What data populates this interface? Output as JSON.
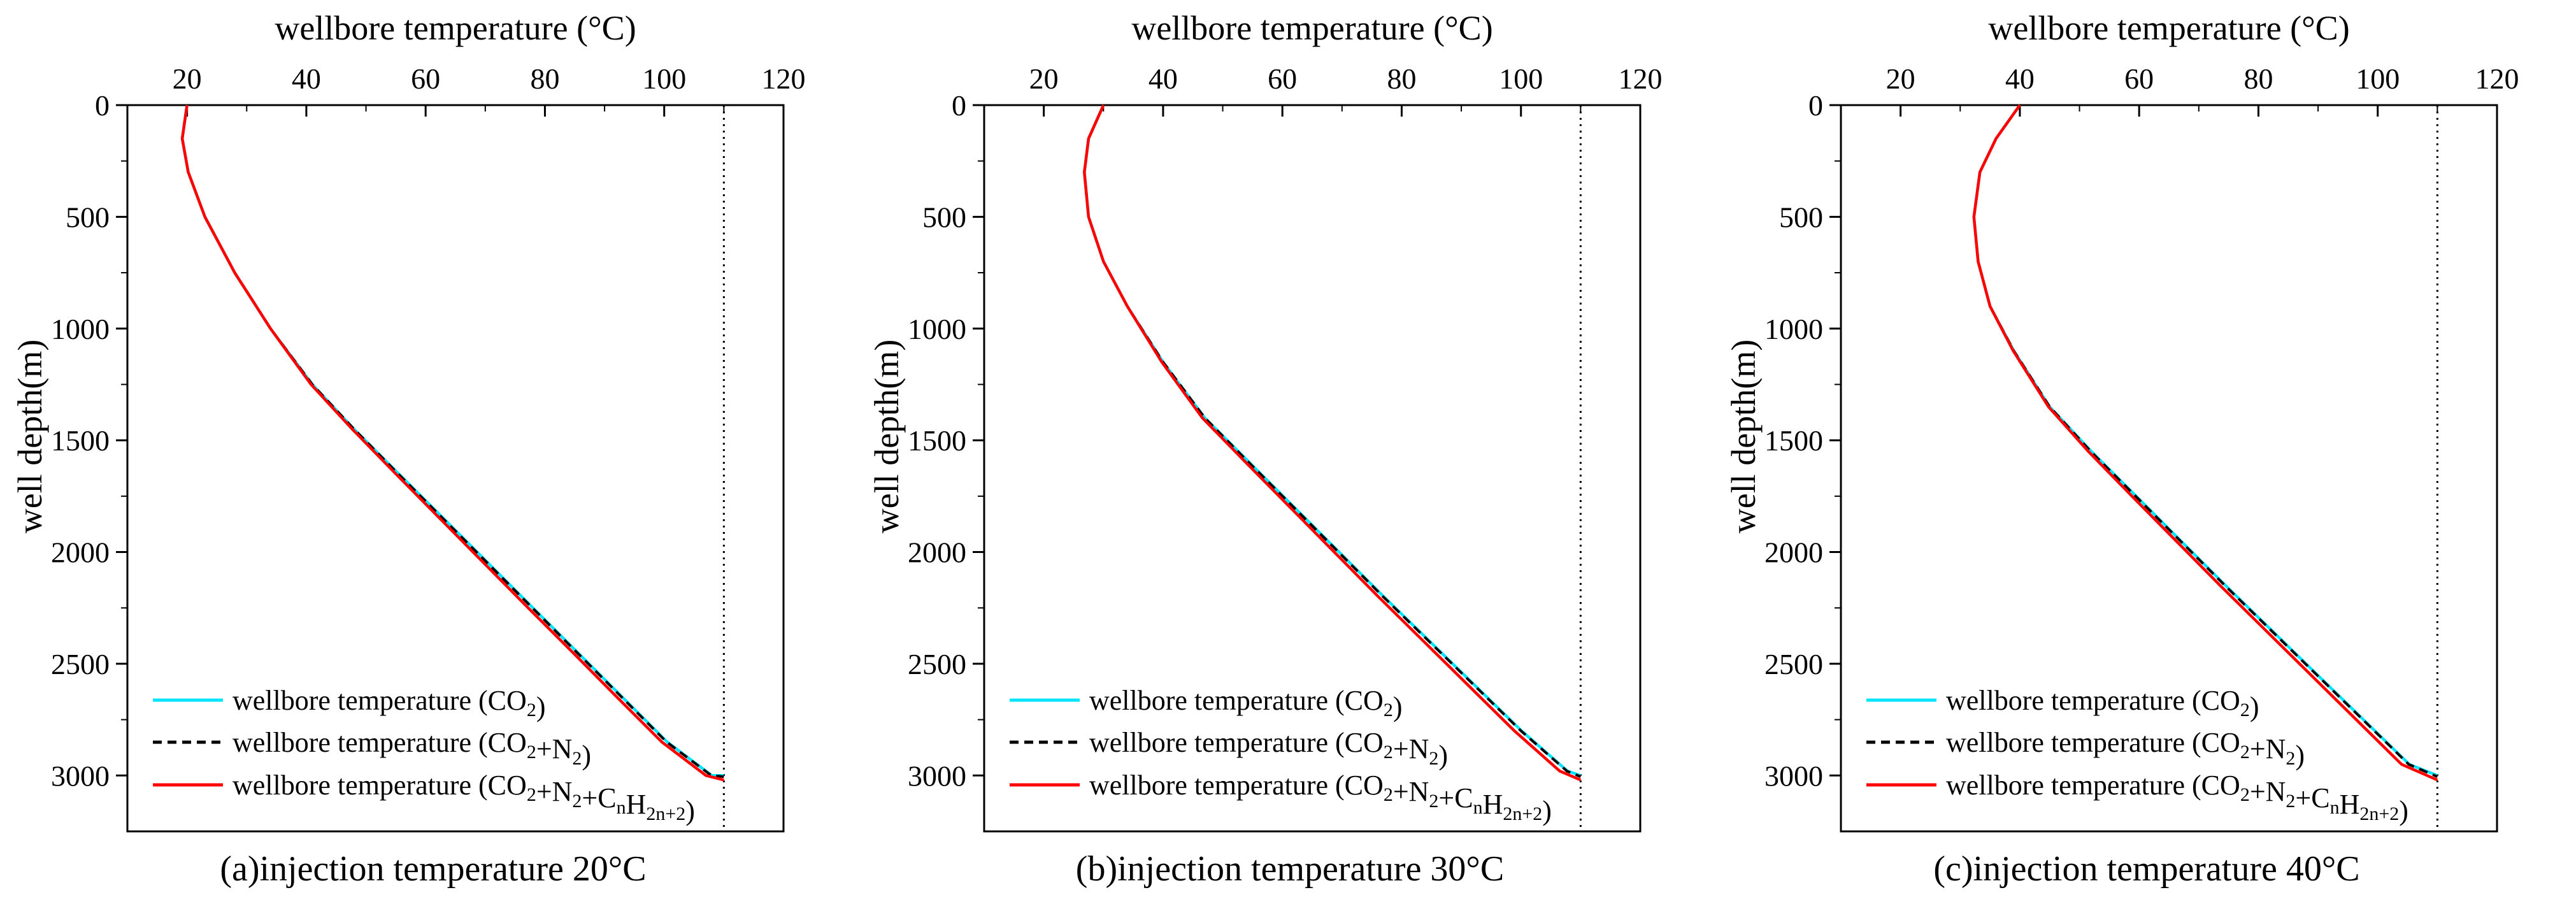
{
  "chart_data": [
    {
      "type": "line",
      "panel_label": "(a)",
      "caption": "(a)injection temperature 20°C",
      "xlabel": "wellbore temperature (°C)",
      "ylabel": "well depth(m)",
      "xlim": [
        10,
        120
      ],
      "ylim": [
        3250,
        0
      ],
      "xticks": [
        20,
        40,
        60,
        80,
        100,
        120
      ],
      "yticks": [
        0,
        500,
        1000,
        1500,
        2000,
        2500,
        3000
      ],
      "reference_line": {
        "x": 110,
        "style": "dotted"
      },
      "legend_location": "lower-left",
      "series": [
        {
          "name": "wellbore temperature (CO2)",
          "legend_parts": [
            [
              "wellbore temperature (CO",
              "n"
            ],
            [
              "2",
              "s"
            ],
            [
              ")",
              "n"
            ]
          ],
          "color": "#00e5ff",
          "style": "solid",
          "x": [
            20,
            19.2,
            20.2,
            23,
            28,
            34,
            41,
            48,
            55.5,
            63,
            70.5,
            78,
            85.5,
            93,
            100.5,
            108,
            110
          ],
          "y": [
            0,
            150,
            300,
            500,
            750,
            1000,
            1250,
            1450,
            1650,
            1850,
            2050,
            2250,
            2450,
            2650,
            2850,
            3000,
            3000
          ]
        },
        {
          "name": "wellbore temperature (CO2+N2)",
          "legend_parts": [
            [
              "wellbore temperature (CO",
              "n"
            ],
            [
              "2",
              "s"
            ],
            [
              "+N",
              "n"
            ],
            [
              "2",
              "s"
            ],
            [
              ")",
              "n"
            ]
          ],
          "color": "#000000",
          "style": "dashed",
          "x": [
            20,
            19.2,
            20.2,
            23,
            28,
            34,
            41,
            48,
            55.4,
            62.9,
            70.4,
            77.9,
            85.4,
            92.9,
            100.4,
            107.9,
            110
          ],
          "y": [
            0,
            150,
            300,
            500,
            750,
            1000,
            1250,
            1450,
            1650,
            1850,
            2050,
            2250,
            2450,
            2650,
            2850,
            3000,
            3005
          ]
        },
        {
          "name": "wellbore temperature (CO2+N2+CnH2n+2)",
          "legend_parts": [
            [
              "wellbore temperature (CO",
              "n"
            ],
            [
              "2",
              "s"
            ],
            [
              "+N",
              "n"
            ],
            [
              "2",
              "s"
            ],
            [
              "+C",
              "n"
            ],
            [
              "n",
              "s"
            ],
            [
              "H",
              "n"
            ],
            [
              "2n+2",
              "s"
            ],
            [
              ")",
              "n"
            ]
          ],
          "color": "#ff0000",
          "style": "solid",
          "x": [
            20,
            19.2,
            20.2,
            23,
            28,
            34,
            40.8,
            47.7,
            55,
            62.4,
            69.8,
            77.2,
            84.7,
            92.1,
            99.6,
            107,
            110
          ],
          "y": [
            0,
            150,
            300,
            500,
            750,
            1000,
            1250,
            1450,
            1650,
            1850,
            2050,
            2250,
            2450,
            2650,
            2850,
            3000,
            3020
          ]
        }
      ]
    },
    {
      "type": "line",
      "panel_label": "(b)",
      "caption": "(b)injection temperature 30°C",
      "xlabel": "wellbore temperature (°C)",
      "ylabel": "well depth(m)",
      "xlim": [
        10,
        120
      ],
      "ylim": [
        3250,
        0
      ],
      "xticks": [
        20,
        40,
        60,
        80,
        100,
        120
      ],
      "yticks": [
        0,
        500,
        1000,
        1500,
        2000,
        2500,
        3000
      ],
      "reference_line": {
        "x": 110,
        "style": "dotted"
      },
      "legend_location": "lower-left",
      "series": [
        {
          "name": "wellbore temperature (CO2)",
          "legend_parts": [
            [
              "wellbore temperature (CO",
              "n"
            ],
            [
              "2",
              "s"
            ],
            [
              ")",
              "n"
            ]
          ],
          "color": "#00e5ff",
          "style": "solid",
          "x": [
            30,
            27.5,
            26.8,
            27.5,
            30,
            34,
            40,
            47,
            54.5,
            62,
            69.5,
            77,
            84.7,
            92.4,
            100.1,
            107.8,
            110
          ],
          "y": [
            0,
            150,
            300,
            500,
            700,
            900,
            1150,
            1400,
            1600,
            1800,
            2000,
            2200,
            2400,
            2600,
            2800,
            2980,
            3000
          ]
        },
        {
          "name": "wellbore temperature (CO2+N2)",
          "legend_parts": [
            [
              "wellbore temperature (CO",
              "n"
            ],
            [
              "2",
              "s"
            ],
            [
              "+N",
              "n"
            ],
            [
              "2",
              "s"
            ],
            [
              ")",
              "n"
            ]
          ],
          "color": "#000000",
          "style": "dashed",
          "x": [
            30,
            27.5,
            26.8,
            27.5,
            30,
            34,
            40,
            47,
            54.4,
            61.9,
            69.4,
            76.9,
            84.6,
            92.3,
            100,
            107.7,
            110
          ],
          "y": [
            0,
            150,
            300,
            500,
            700,
            900,
            1150,
            1400,
            1600,
            1800,
            2000,
            2200,
            2400,
            2600,
            2800,
            2980,
            3005
          ]
        },
        {
          "name": "wellbore temperature (CO2+N2+CnH2n+2)",
          "legend_parts": [
            [
              "wellbore temperature (CO",
              "n"
            ],
            [
              "2",
              "s"
            ],
            [
              "+N",
              "n"
            ],
            [
              "2",
              "s"
            ],
            [
              "+C",
              "n"
            ],
            [
              "n",
              "s"
            ],
            [
              "H",
              "n"
            ],
            [
              "2n+2",
              "s"
            ],
            [
              ")",
              "n"
            ]
          ],
          "color": "#ff0000",
          "style": "solid",
          "x": [
            30,
            27.5,
            26.8,
            27.5,
            30,
            34,
            39.8,
            46.6,
            53.9,
            61.3,
            68.7,
            76.1,
            83.7,
            91.3,
            98.9,
            106.5,
            110
          ],
          "y": [
            0,
            150,
            300,
            500,
            700,
            900,
            1150,
            1400,
            1600,
            1800,
            2000,
            2200,
            2400,
            2600,
            2800,
            2980,
            3020
          ]
        }
      ]
    },
    {
      "type": "line",
      "panel_label": "(c)",
      "caption": "(c)injection temperature 40°C",
      "xlabel": "wellbore temperature (°C)",
      "ylabel": "well depth(m)",
      "xlim": [
        10,
        120
      ],
      "ylim": [
        3250,
        0
      ],
      "xticks": [
        20,
        40,
        60,
        80,
        100,
        120
      ],
      "yticks": [
        0,
        500,
        1000,
        1500,
        2000,
        2500,
        3000
      ],
      "reference_line": {
        "x": 110,
        "style": "dotted"
      },
      "legend_location": "lower-left",
      "series": [
        {
          "name": "wellbore temperature (CO2)",
          "legend_parts": [
            [
              "wellbore temperature (CO",
              "n"
            ],
            [
              "2",
              "s"
            ],
            [
              ")",
              "n"
            ]
          ],
          "color": "#00e5ff",
          "style": "solid",
          "x": [
            40,
            36,
            33.3,
            32.3,
            33,
            35,
            39,
            45,
            52,
            59.5,
            67,
            74.5,
            82.2,
            89.9,
            97.6,
            105.3,
            110
          ],
          "y": [
            0,
            150,
            300,
            500,
            700,
            900,
            1100,
            1350,
            1550,
            1750,
            1950,
            2150,
            2350,
            2550,
            2750,
            2950,
            3000
          ]
        },
        {
          "name": "wellbore temperature (CO2+N2)",
          "legend_parts": [
            [
              "wellbore temperature (CO",
              "n"
            ],
            [
              "2",
              "s"
            ],
            [
              "+N",
              "n"
            ],
            [
              "2",
              "s"
            ],
            [
              ")",
              "n"
            ]
          ],
          "color": "#000000",
          "style": "dashed",
          "x": [
            40,
            36,
            33.3,
            32.3,
            33,
            35,
            39,
            45,
            51.9,
            59.4,
            66.9,
            74.4,
            82.1,
            89.8,
            97.5,
            105.2,
            110
          ],
          "y": [
            0,
            150,
            300,
            500,
            700,
            900,
            1100,
            1350,
            1550,
            1750,
            1950,
            2150,
            2350,
            2550,
            2750,
            2950,
            3005
          ]
        },
        {
          "name": "wellbore temperature (CO2+N2+CnH2n+2)",
          "legend_parts": [
            [
              "wellbore temperature (CO",
              "n"
            ],
            [
              "2",
              "s"
            ],
            [
              "+N",
              "n"
            ],
            [
              "2",
              "s"
            ],
            [
              "+C",
              "n"
            ],
            [
              "n",
              "s"
            ],
            [
              "H",
              "n"
            ],
            [
              "2n+2",
              "s"
            ],
            [
              ")",
              "n"
            ]
          ],
          "color": "#ff0000",
          "style": "solid",
          "x": [
            40,
            36,
            33.3,
            32.3,
            33,
            35,
            38.9,
            44.8,
            51.5,
            58.8,
            66.2,
            73.6,
            81.2,
            88.8,
            96.4,
            104,
            110
          ],
          "y": [
            0,
            150,
            300,
            500,
            700,
            900,
            1100,
            1350,
            1550,
            1750,
            1950,
            2150,
            2350,
            2550,
            2750,
            2950,
            3020
          ]
        }
      ]
    }
  ]
}
